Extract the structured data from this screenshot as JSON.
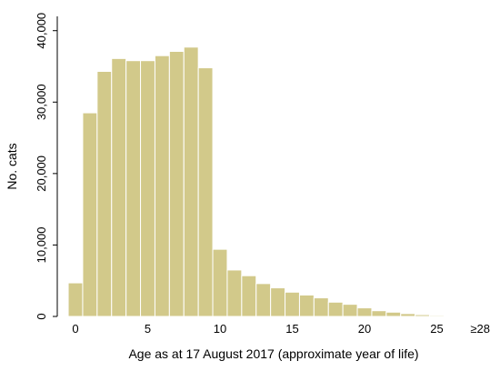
{
  "chart_data": {
    "type": "bar",
    "title": "",
    "xlabel": "Age as at 17 August 2017 (approximate year of life)",
    "ylabel": "No. cats",
    "ylim": [
      0,
      42000
    ],
    "x_ticks": [
      "0",
      "5",
      "10",
      "15",
      "20",
      "25",
      "≥28"
    ],
    "y_ticks": [
      "0",
      "10,000",
      "20,000",
      "30,000",
      "40,000"
    ],
    "y_tick_values": [
      0,
      10000,
      20000,
      30000,
      40000
    ],
    "grid": false,
    "bar_color": "#d2c98a",
    "bar_edge_color": "#ffffff",
    "categories": [
      0,
      1,
      2,
      3,
      4,
      5,
      6,
      7,
      8,
      9,
      10,
      11,
      12,
      13,
      14,
      15,
      16,
      17,
      18,
      19,
      20,
      21,
      22,
      23,
      24,
      25,
      26,
      27,
      28
    ],
    "values": [
      4700,
      28500,
      34300,
      36100,
      35800,
      35800,
      36500,
      37100,
      37700,
      34800,
      9400,
      6500,
      5700,
      4600,
      4000,
      3400,
      3000,
      2600,
      2000,
      1700,
      1200,
      800,
      600,
      400,
      250,
      150,
      100,
      60,
      30
    ]
  }
}
